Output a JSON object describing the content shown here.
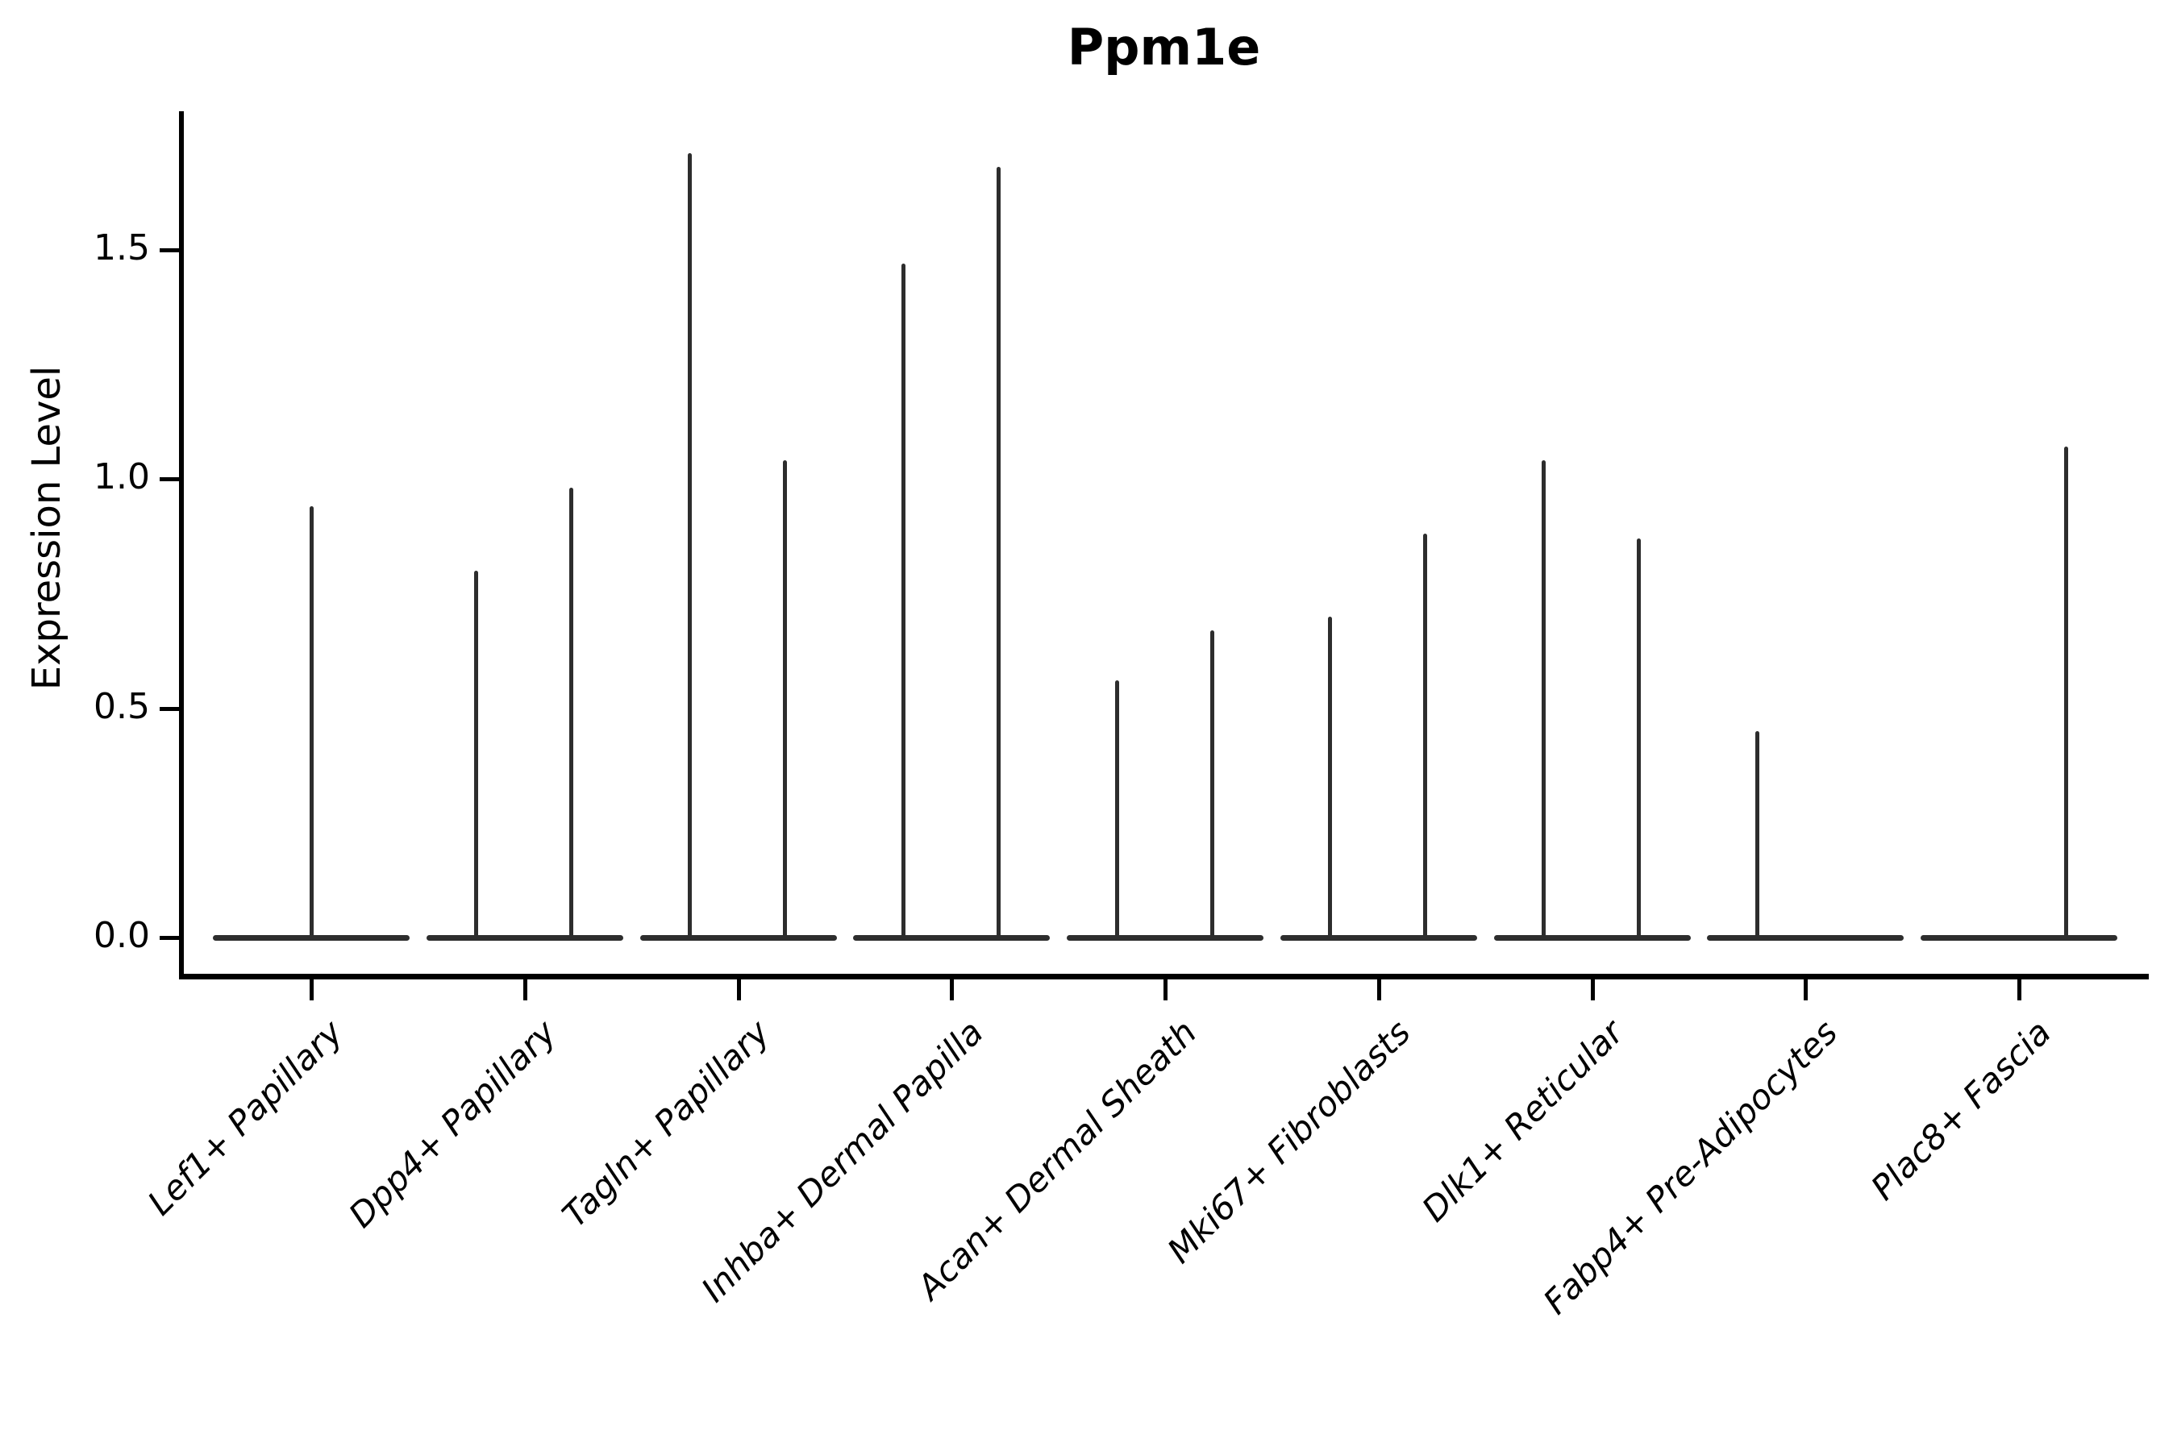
{
  "chart_data": {
    "type": "violin",
    "title": "Ppm1e",
    "xlabel": "",
    "ylabel": "Expression Level",
    "ylim": [
      0,
      1.8
    ],
    "yticks": [
      "0.0",
      "0.5",
      "1.0",
      "1.5"
    ],
    "ytick_values": [
      0.0,
      0.5,
      1.0,
      1.5
    ],
    "legend": "none",
    "grid": false,
    "style_note": "Seurat-style VlnPlot of a sparsely expressed gene: each violin collapses to a flat baseline at 0 with a single thin density spike rising to the maximum expression value. Categories with two dodged violins show two spikes; a missing spike means that group has no expressing cells.",
    "categories": [
      "Lef1+ Papillary",
      "Dpp4+ Papillary",
      "Tagln+ Papillary",
      "Inhba+ Dermal Papilla",
      "Acan+ Dermal Sheath",
      "Mki67+ Fibroblasts",
      "Dlk1+ Reticular",
      "Fabp4+ Pre-Adipocytes",
      "Plac8+ Fascia"
    ],
    "violins": [
      {
        "category": "Lef1+ Papillary",
        "spikes": [
          {
            "position": "center",
            "max": 0.94
          }
        ]
      },
      {
        "category": "Dpp4+ Papillary",
        "spikes": [
          {
            "position": "left",
            "max": 0.8
          },
          {
            "position": "right",
            "max": 0.98
          }
        ]
      },
      {
        "category": "Tagln+ Papillary",
        "spikes": [
          {
            "position": "left",
            "max": 1.71
          },
          {
            "position": "right",
            "max": 1.04
          }
        ]
      },
      {
        "category": "Inhba+ Dermal Papilla",
        "spikes": [
          {
            "position": "left",
            "max": 1.47
          },
          {
            "position": "right",
            "max": 1.68
          }
        ]
      },
      {
        "category": "Acan+ Dermal Sheath",
        "spikes": [
          {
            "position": "left",
            "max": 0.56
          },
          {
            "position": "right",
            "max": 0.67
          }
        ]
      },
      {
        "category": "Mki67+ Fibroblasts",
        "spikes": [
          {
            "position": "left",
            "max": 0.7
          },
          {
            "position": "right",
            "max": 0.88
          }
        ]
      },
      {
        "category": "Dlk1+ Reticular",
        "spikes": [
          {
            "position": "left",
            "max": 1.04
          },
          {
            "position": "right",
            "max": 0.87
          }
        ]
      },
      {
        "category": "Fabp4+ Pre-Adipocytes",
        "spikes": [
          {
            "position": "left",
            "max": 0.45
          }
        ]
      },
      {
        "category": "Plac8+ Fascia",
        "spikes": [
          {
            "position": "right",
            "max": 1.07
          }
        ]
      }
    ],
    "colors": {
      "text": "#000000",
      "spine": "#000000",
      "violin_line": "#2d2d2d",
      "background": "#ffffff"
    }
  }
}
